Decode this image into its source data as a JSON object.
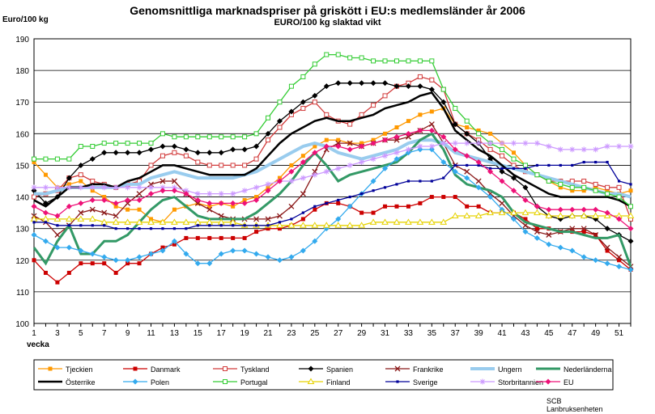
{
  "chart_data": {
    "type": "line",
    "title": "Genomsnittliga marknadspriser på griskött i EU:s medlemsländer  år 2006",
    "subtitle": "EURO/100 kg  slaktad vikt",
    "ylabel": "Euro/100 kg",
    "xlabel": "vecka",
    "ylim": [
      100,
      190
    ],
    "yticks": [
      100,
      110,
      120,
      130,
      140,
      150,
      160,
      170,
      180,
      190
    ],
    "xlim": [
      1,
      52
    ],
    "xticks": [
      1,
      3,
      5,
      7,
      9,
      11,
      13,
      15,
      17,
      19,
      21,
      23,
      25,
      27,
      29,
      31,
      33,
      35,
      37,
      39,
      41,
      43,
      45,
      47,
      49,
      51
    ],
    "grid": true,
    "legend_position": "bottom",
    "source_lines": [
      "SCB",
      "Lanbruksenheten"
    ],
    "series": [
      {
        "name": "Tjeckien",
        "color": "#ff9900",
        "marker": "square",
        "values": [
          151,
          147,
          143,
          144,
          145,
          142,
          140,
          137,
          136,
          136,
          133,
          132,
          136,
          137,
          138,
          137,
          138,
          137,
          139,
          140,
          143,
          146,
          150,
          153,
          156,
          158,
          158,
          157,
          157,
          158,
          160,
          162,
          164,
          166,
          167,
          168,
          163,
          162,
          161,
          160,
          157,
          154,
          150,
          147,
          145,
          143,
          142,
          142,
          143,
          142,
          141,
          142
        ]
      },
      {
        "name": "Danmark",
        "color": "#cc0000",
        "marker": "square",
        "values": [
          120,
          116,
          113,
          116,
          119,
          119,
          119,
          116,
          119,
          119,
          122,
          124,
          125,
          127,
          127,
          127,
          127,
          127,
          127,
          129,
          130,
          130,
          131,
          133,
          136,
          138,
          138,
          137,
          135,
          135,
          137,
          137,
          137,
          138,
          140,
          140,
          140,
          137,
          137,
          135,
          135,
          135,
          133,
          130,
          130,
          129,
          129,
          129,
          128,
          123,
          120,
          117
        ]
      },
      {
        "name": "Tyskland",
        "color": "#d23c3c",
        "marker": "open-square",
        "values": [
          140,
          141,
          142,
          146,
          147,
          145,
          144,
          143,
          144,
          145,
          150,
          153,
          154,
          153,
          151,
          150,
          150,
          150,
          150,
          152,
          158,
          162,
          166,
          168,
          170,
          166,
          164,
          163,
          166,
          169,
          172,
          175,
          176,
          178,
          177,
          174,
          163,
          160,
          158,
          155,
          153,
          150,
          148,
          147,
          145,
          145,
          145,
          145,
          144,
          143,
          143,
          133
        ]
      },
      {
        "name": "Spanien",
        "color": "#000000",
        "marker": "diamond",
        "values": [
          142,
          138,
          140,
          146,
          150,
          152,
          154,
          154,
          154,
          154,
          155,
          156,
          156,
          155,
          154,
          154,
          154,
          155,
          155,
          156,
          160,
          164,
          167,
          170,
          172,
          175,
          176,
          176,
          176,
          176,
          176,
          175,
          175,
          175,
          174,
          170,
          163,
          160,
          157,
          152,
          148,
          146,
          143,
          137,
          134,
          133,
          134,
          134,
          133,
          130,
          128,
          126
        ]
      },
      {
        "name": "Frankrike",
        "color": "#8b1a1a",
        "marker": "x",
        "values": [
          134,
          132,
          128,
          131,
          135,
          136,
          135,
          134,
          138,
          141,
          144,
          145,
          145,
          141,
          138,
          136,
          134,
          133,
          133,
          133,
          133,
          134,
          137,
          141,
          148,
          155,
          157,
          157,
          156,
          157,
          158,
          158,
          159,
          161,
          163,
          157,
          150,
          148,
          145,
          141,
          138,
          134,
          131,
          129,
          128,
          129,
          130,
          130,
          128,
          124,
          121,
          118
        ]
      },
      {
        "name": "Ungern",
        "color": "#99ccee",
        "marker": "none",
        "values": [
          141,
          141,
          142,
          143,
          143,
          143,
          143,
          143,
          144,
          144,
          146,
          147,
          148,
          147,
          146,
          146,
          146,
          146,
          147,
          148,
          150,
          152,
          154,
          156,
          157,
          156,
          154,
          153,
          152,
          153,
          154,
          155,
          157,
          158,
          158,
          157,
          154,
          153,
          152,
          151,
          150,
          149,
          148,
          147,
          146,
          145,
          144,
          143,
          142,
          141,
          141,
          140
        ]
      },
      {
        "name": "Nederländerna",
        "color": "#339966",
        "marker": "none",
        "values": [
          124,
          119,
          126,
          131,
          122,
          122,
          126,
          126,
          128,
          132,
          136,
          139,
          140,
          137,
          134,
          133,
          133,
          133,
          133,
          135,
          138,
          141,
          145,
          150,
          154,
          150,
          145,
          147,
          148,
          149,
          150,
          151,
          154,
          158,
          160,
          155,
          147,
          144,
          143,
          142,
          140,
          135,
          132,
          131,
          130,
          129,
          129,
          128,
          127,
          127,
          128,
          118
        ]
      },
      {
        "name": "Österrike",
        "color": "#000000",
        "marker": "none",
        "values": [
          139,
          137,
          140,
          143,
          143,
          144,
          144,
          143,
          145,
          146,
          148,
          150,
          150,
          149,
          148,
          147,
          147,
          147,
          147,
          149,
          153,
          157,
          160,
          162,
          164,
          165,
          164,
          164,
          165,
          166,
          168,
          169,
          170,
          172,
          173,
          168,
          161,
          158,
          155,
          153,
          150,
          147,
          145,
          143,
          141,
          140,
          140,
          140,
          140,
          140,
          139,
          137
        ]
      },
      {
        "name": "Polen",
        "color": "#33aaee",
        "marker": "diamond",
        "values": [
          128,
          126,
          124,
          124,
          123,
          122,
          121,
          120,
          120,
          121,
          122,
          123,
          126,
          122,
          119,
          119,
          122,
          123,
          123,
          122,
          121,
          120,
          121,
          123,
          126,
          130,
          133,
          137,
          141,
          145,
          149,
          152,
          154,
          155,
          155,
          151,
          148,
          146,
          143,
          140,
          136,
          133,
          129,
          127,
          125,
          124,
          123,
          121,
          120,
          119,
          118,
          117
        ]
      },
      {
        "name": "Portugal",
        "color": "#33cc33",
        "marker": "open-square",
        "values": [
          152,
          152,
          152,
          152,
          156,
          156,
          157,
          157,
          157,
          157,
          157,
          160,
          159,
          159,
          159,
          159,
          159,
          159,
          159,
          160,
          165,
          170,
          175,
          178,
          182,
          185,
          185,
          184,
          184,
          183,
          183,
          183,
          183,
          183,
          183,
          174,
          168,
          164,
          160,
          157,
          155,
          152,
          150,
          147,
          145,
          144,
          143,
          143,
          142,
          141,
          140,
          137
        ]
      },
      {
        "name": "Finland",
        "color": "#e6d200",
        "marker": "triangle",
        "values": [
          133,
          133,
          133,
          133,
          133,
          133,
          132,
          132,
          132,
          132,
          132,
          132,
          132,
          132,
          132,
          132,
          132,
          132,
          131,
          131,
          131,
          131,
          131,
          131,
          131,
          131,
          131,
          131,
          131,
          132,
          132,
          132,
          132,
          132,
          132,
          132,
          134,
          134,
          134,
          135,
          135,
          135,
          135,
          135,
          134,
          134,
          134,
          134,
          134,
          134,
          134,
          134
        ]
      },
      {
        "name": "Sverige",
        "color": "#000099",
        "marker": "small-square",
        "values": [
          132,
          132,
          131,
          131,
          131,
          131,
          131,
          130,
          130,
          130,
          130,
          130,
          130,
          130,
          131,
          131,
          131,
          131,
          131,
          131,
          131,
          132,
          133,
          135,
          137,
          138,
          139,
          140,
          141,
          142,
          143,
          144,
          145,
          145,
          145,
          146,
          150,
          150,
          150,
          149,
          149,
          149,
          149,
          150,
          150,
          150,
          150,
          151,
          151,
          151,
          145,
          144
        ]
      },
      {
        "name": "Storbritannien",
        "color": "#cc99ff",
        "marker": "star",
        "values": [
          143,
          143,
          143,
          143,
          143,
          143,
          143,
          143,
          143,
          143,
          143,
          143,
          143,
          142,
          141,
          141,
          141,
          141,
          142,
          143,
          144,
          145,
          145,
          146,
          147,
          148,
          149,
          150,
          151,
          152,
          153,
          154,
          155,
          156,
          156,
          157,
          157,
          157,
          157,
          157,
          157,
          157,
          157,
          157,
          156,
          155,
          155,
          155,
          155,
          156,
          156,
          156
        ]
      },
      {
        "name": "EU",
        "color": "#ee1177",
        "marker": "diamond",
        "values": [
          137,
          135,
          134,
          137,
          138,
          139,
          139,
          138,
          139,
          139,
          141,
          142,
          142,
          141,
          139,
          138,
          138,
          138,
          138,
          139,
          142,
          145,
          148,
          151,
          154,
          156,
          156,
          155,
          156,
          157,
          158,
          159,
          160,
          161,
          161,
          159,
          155,
          153,
          151,
          148,
          145,
          142,
          139,
          137,
          136,
          136,
          136,
          136,
          136,
          135,
          133,
          130
        ]
      }
    ]
  }
}
